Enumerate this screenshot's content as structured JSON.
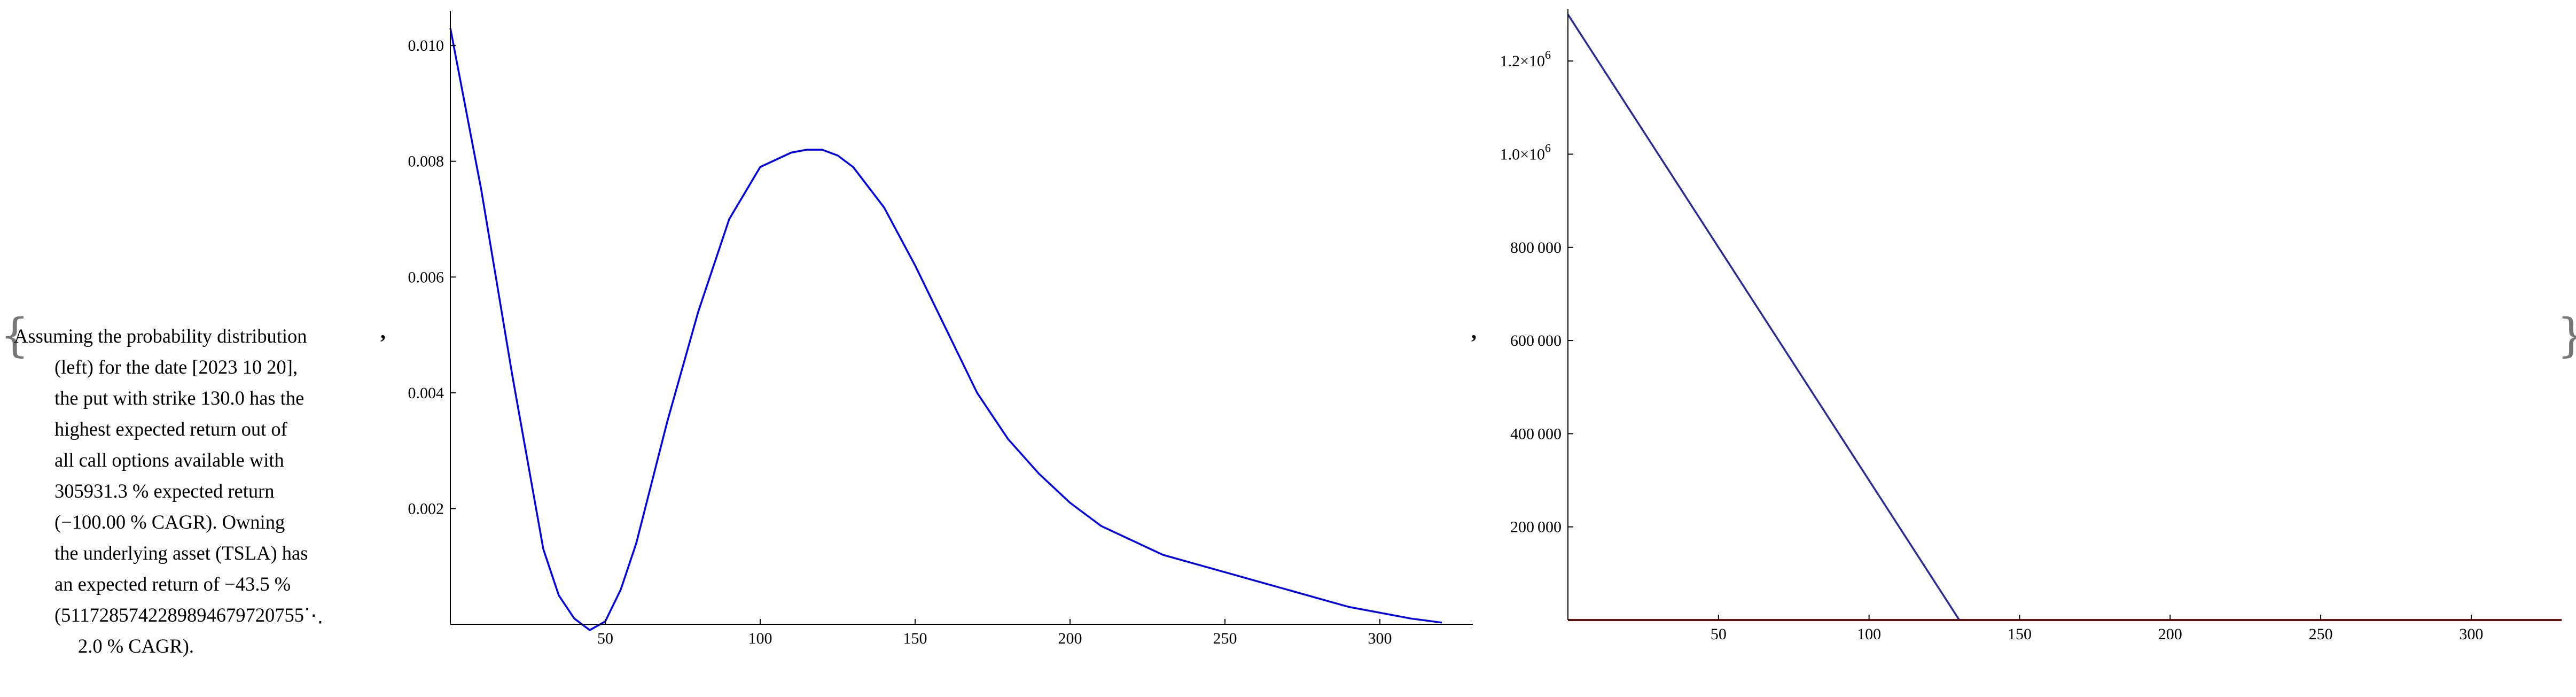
{
  "brackets": {
    "open": "{",
    "close": "}"
  },
  "separators": {
    "comma1": ",",
    "comma2": ","
  },
  "description": {
    "lines": [
      "Assuming the probability distribution",
      "(left) for the date [2023 10 20],",
      "the put with strike 130.0 has the",
      "highest expected return out of",
      "all call options available with",
      "305931.3 % expected return",
      "(−100.00 % CAGR). Owning",
      "the underlying asset (TSLA) has",
      "an expected return of −43.5 %",
      "(5117285742289894679720755⋱",
      "2.0 % CAGR)."
    ]
  },
  "colors": {
    "density_curve": "#0000ee",
    "payoff_line": "#2a2a9a",
    "zero_line": "#cc0000",
    "axis": "#000000"
  },
  "chart_data": [
    {
      "type": "line",
      "title": "",
      "xlabel": "",
      "ylabel": "",
      "xlim": [
        0,
        330
      ],
      "ylim": [
        0,
        0.0105
      ],
      "x_ticks": [
        50,
        100,
        150,
        200,
        250,
        300
      ],
      "x_tick_labels": [
        "50",
        "100",
        "150",
        "200",
        "250",
        "300"
      ],
      "y_ticks": [
        0.002,
        0.004,
        0.006,
        0.008,
        0.01
      ],
      "y_tick_labels": [
        "0.002",
        "0.004",
        "0.006",
        "0.008",
        "0.010"
      ],
      "series": [
        {
          "color": "#0000ee",
          "x": [
            0,
            10,
            20,
            30,
            35,
            40,
            45,
            50,
            55,
            60,
            70,
            80,
            90,
            100,
            110,
            115,
            120,
            125,
            130,
            140,
            150,
            160,
            170,
            180,
            190,
            200,
            210,
            220,
            230,
            240,
            250,
            260,
            270,
            280,
            290,
            300,
            310,
            320
          ],
          "y": [
            0.0103,
            0.0075,
            0.0043,
            0.0013,
            0.0005,
            0.0001,
            -0.0001,
            5e-05,
            0.0006,
            0.0014,
            0.0035,
            0.0054,
            0.007,
            0.0079,
            0.00815,
            0.0082,
            0.0082,
            0.0081,
            0.0079,
            0.0072,
            0.0062,
            0.0051,
            0.004,
            0.0032,
            0.0026,
            0.0021,
            0.0017,
            0.00145,
            0.0012,
            0.00105,
            0.0009,
            0.00075,
            0.0006,
            0.00045,
            0.0003,
            0.0002,
            0.0001,
            3e-05
          ]
        }
      ]
    },
    {
      "type": "line",
      "title": "",
      "xlabel": "",
      "ylabel": "",
      "xlim": [
        0,
        330
      ],
      "ylim": [
        0,
        1300000
      ],
      "x_ticks": [
        50,
        100,
        150,
        200,
        250,
        300
      ],
      "x_tick_labels": [
        "50",
        "100",
        "150",
        "200",
        "250",
        "300"
      ],
      "y_ticks": [
        200000,
        400000,
        600000,
        800000,
        1000000,
        1200000
      ],
      "y_tick_labels": [
        "200 000",
        "400 000",
        "600 000",
        "800 000",
        "1.0×10",
        "1.2×10"
      ],
      "y_tick_exponents": [
        "",
        "",
        "",
        "",
        "6",
        "6"
      ],
      "series": [
        {
          "color": "#2a2a9a",
          "x": [
            0,
            130,
            330
          ],
          "y": [
            1300000,
            0,
            0
          ]
        },
        {
          "color": "#cc0000",
          "x": [
            0,
            330
          ],
          "y": [
            0,
            0
          ]
        }
      ]
    }
  ]
}
